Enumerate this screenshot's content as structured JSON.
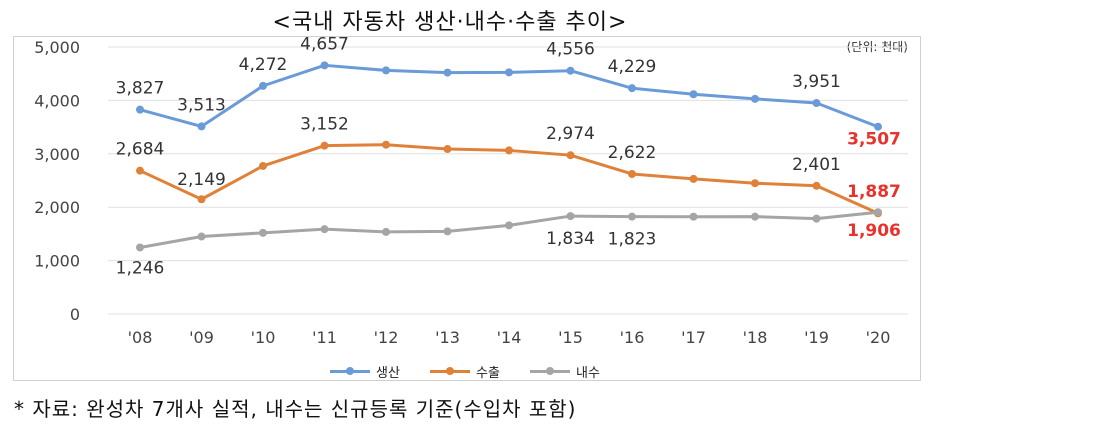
{
  "title": "<국내 자동차 생산·내수·수출 추이>",
  "unit_label": "(단위: 천대)",
  "footnote": "* 자료: 완성차 7개사 실적, 내수는 신규등록 기준(수입차 포함)",
  "chart_data": {
    "type": "line",
    "categories": [
      "'08",
      "'09",
      "'10",
      "'11",
      "'12",
      "'13",
      "'14",
      "'15",
      "'16",
      "'17",
      "'18",
      "'19",
      "'20"
    ],
    "ylim": [
      0,
      5000
    ],
    "yticks": [
      "0",
      "1,000",
      "2,000",
      "3,000",
      "4,000",
      "5,000"
    ],
    "grid": true,
    "legend_position": "bottom",
    "series": [
      {
        "name": "생산",
        "color": "#6a9bd8",
        "values": [
          3827,
          3513,
          4272,
          4657,
          4562,
          4521,
          4525,
          4556,
          4229,
          4115,
          4029,
          3951,
          3507
        ],
        "labels": [
          "3,827",
          "3,513",
          "4,272",
          "4,657",
          "",
          "",
          "",
          "4,556",
          "4,229",
          "",
          "",
          "3,951",
          "3,507"
        ]
      },
      {
        "name": "수출",
        "color": "#e0813a",
        "values": [
          2684,
          2149,
          2772,
          3152,
          3170,
          3089,
          3063,
          2974,
          2622,
          2530,
          2449,
          2401,
          1887
        ],
        "labels": [
          "2,684",
          "2,149",
          "",
          "3,152",
          "",
          "",
          "",
          "2,974",
          "2,622",
          "",
          "",
          "2,401",
          "1,887"
        ]
      },
      {
        "name": "내수",
        "color": "#a5a5a5",
        "values": [
          1246,
          1451,
          1520,
          1589,
          1537,
          1547,
          1660,
          1834,
          1823,
          1822,
          1823,
          1786,
          1906
        ],
        "labels": [
          "1,246",
          "",
          "",
          "",
          "",
          "",
          "",
          "1,834",
          "1,823",
          "",
          "",
          "",
          "1,906"
        ]
      }
    ],
    "highlight_color": "#e8322b"
  }
}
